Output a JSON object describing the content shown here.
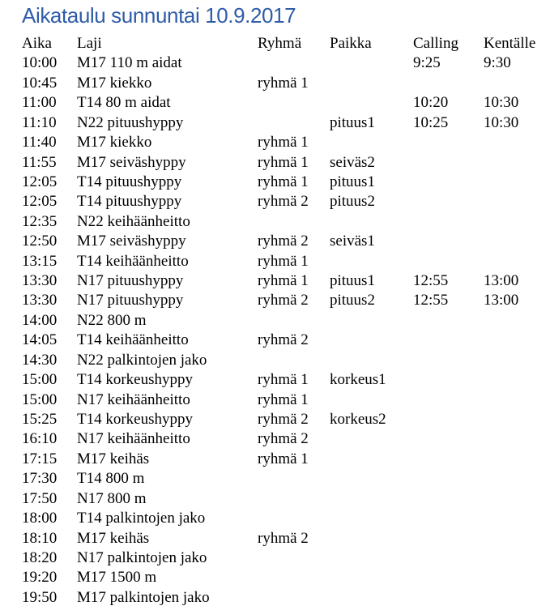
{
  "title": "Aikataulu sunnuntai 10.9.2017",
  "colors": {
    "title_blue": "#2E5CA8",
    "body_text": "#000000",
    "background": "#FFFFFF"
  },
  "table": {
    "columns": [
      "Aika",
      "Laji",
      "Ryhmä",
      "Paikka",
      "Calling",
      "Kentälle"
    ],
    "column_keys": [
      "aika",
      "laji",
      "ryhma",
      "paikka",
      "calling",
      "kentalle"
    ],
    "rows": [
      [
        "10:00",
        "M17 110 m aidat",
        "",
        "",
        "9:25",
        "9:30"
      ],
      [
        "10:45",
        "M17 kiekko",
        "ryhmä 1",
        "",
        "",
        ""
      ],
      [
        "11:00",
        "T14 80 m aidat",
        "",
        "",
        "10:20",
        "10:30"
      ],
      [
        "11:10",
        "N22 pituushyppy",
        "",
        "pituus1",
        "10:25",
        "10:30"
      ],
      [
        "11:40",
        "M17 kiekko",
        "ryhmä 1",
        "",
        "",
        ""
      ],
      [
        "11:55",
        "M17 seiväshyppy",
        "ryhmä 1",
        "seiväs2",
        "",
        ""
      ],
      [
        "12:05",
        "T14 pituushyppy",
        "ryhmä 1",
        "pituus1",
        "",
        ""
      ],
      [
        "12:05",
        "T14 pituushyppy",
        "ryhmä 2",
        "pituus2",
        "",
        ""
      ],
      [
        "12:35",
        "N22 keihäänheitto",
        "",
        "",
        "",
        ""
      ],
      [
        "12:50",
        "M17 seiväshyppy",
        "ryhmä 2",
        "seiväs1",
        "",
        ""
      ],
      [
        "13:15",
        "T14 keihäänheitto",
        "ryhmä 1",
        "",
        "",
        ""
      ],
      [
        "13:30",
        "N17 pituushyppy",
        "ryhmä 1",
        "pituus1",
        "12:55",
        "13:00"
      ],
      [
        "13:30",
        "N17 pituushyppy",
        "ryhmä 2",
        "pituus2",
        "12:55",
        "13:00"
      ],
      [
        "14:00",
        "N22 800 m",
        "",
        "",
        "",
        ""
      ],
      [
        "14:05",
        "T14 keihäänheitto",
        "ryhmä 2",
        "",
        "",
        ""
      ],
      [
        "14:30",
        "N22 palkintojen jako",
        "",
        "",
        "",
        ""
      ],
      [
        "15:00",
        "T14 korkeushyppy",
        "ryhmä 1",
        "korkeus1",
        "",
        ""
      ],
      [
        "15:00",
        "N17 keihäänheitto",
        "ryhmä 1",
        "",
        "",
        ""
      ],
      [
        "15:25",
        "T14 korkeushyppy",
        "ryhmä 2",
        "korkeus2",
        "",
        ""
      ],
      [
        "16:10",
        "N17 keihäänheitto",
        "ryhmä 2",
        "",
        "",
        ""
      ],
      [
        "17:15",
        "M17 keihäs",
        "ryhmä 1",
        "",
        "",
        ""
      ],
      [
        "17:30",
        "T14 800 m",
        "",
        "",
        "",
        ""
      ],
      [
        "17:50",
        "N17 800 m",
        "",
        "",
        "",
        ""
      ],
      [
        "18:00",
        "T14 palkintojen jako",
        "",
        "",
        "",
        ""
      ],
      [
        "18:10",
        "M17 keihäs",
        "ryhmä 2",
        "",
        "",
        ""
      ],
      [
        "18:20",
        "N17 palkintojen jako",
        "",
        "",
        "",
        ""
      ],
      [
        "19:20",
        "M17 1500 m",
        "",
        "",
        "",
        ""
      ],
      [
        "19:50",
        "M17 palkintojen jako",
        "",
        "",
        "",
        ""
      ]
    ]
  }
}
